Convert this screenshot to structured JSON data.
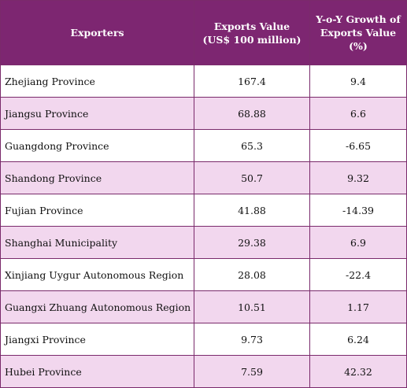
{
  "header": {
    "col1": "Exporters",
    "col2_line1": "Exports Value",
    "col2_line2": "(US$ 100 million)",
    "col3_line1": "Y-o-Y Growth of",
    "col3_line2": "Exports Value",
    "col3_line3": "(%)"
  },
  "rows": [
    {
      "exporter": "Zhejiang Province",
      "value": "167.4",
      "growth": "9.4"
    },
    {
      "exporter": "Jiangsu Province",
      "value": "68.88",
      "growth": "6.6"
    },
    {
      "exporter": "Guangdong Province",
      "value": "65.3",
      "growth": "-6.65"
    },
    {
      "exporter": "Shandong Province",
      "value": "50.7",
      "growth": "9.32"
    },
    {
      "exporter": "Fujian Province",
      "value": "41.88",
      "growth": "-14.39"
    },
    {
      "exporter": "Shanghai Municipality",
      "value": "29.38",
      "growth": "6.9"
    },
    {
      "exporter": "Xinjiang Uygur Autonomous Region",
      "value": "28.08",
      "growth": "-22.4"
    },
    {
      "exporter": "Guangxi Zhuang Autonomous Region",
      "value": "10.51",
      "growth": "1.17"
    },
    {
      "exporter": "Jiangxi Province",
      "value": "9.73",
      "growth": "6.24"
    },
    {
      "exporter": "Hubei Province",
      "value": "7.59",
      "growth": "42.32"
    }
  ],
  "colors": {
    "header_bg": "#7d2671",
    "row_alt_bg": "#f2d7ee",
    "border": "#7a2a6b"
  }
}
